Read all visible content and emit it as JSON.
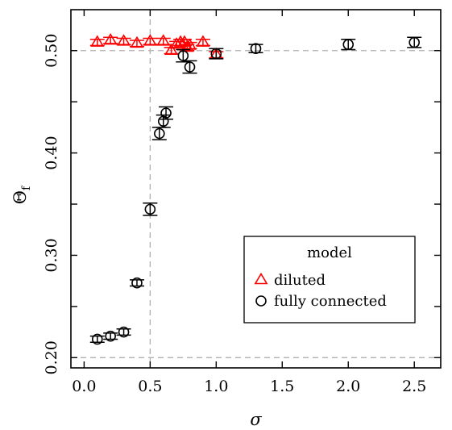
{
  "chart_data": {
    "type": "scatter",
    "xlabel": "σ",
    "ylabel_main": "Θ",
    "ylabel_sub": "f",
    "xlim": [
      -0.1,
      2.7
    ],
    "ylim": [
      0.19,
      0.54
    ],
    "xticks": [
      0.0,
      0.5,
      1.0,
      1.5,
      2.0,
      2.5
    ],
    "xtick_labels": [
      "0.0",
      "0.5",
      "1.0",
      "1.5",
      "2.0",
      "2.5"
    ],
    "yticks": [
      0.2,
      0.3,
      0.4,
      0.5
    ],
    "ytick_labels": [
      "0.20",
      "0.30",
      "0.40",
      "0.50"
    ],
    "minor_yticks": [
      0.25,
      0.35,
      0.45
    ],
    "reference_lines": {
      "x": 0.5,
      "y_low": 0.2,
      "y_high": 0.5,
      "style": "dashed",
      "color": "#b0b0b0"
    },
    "grid": false,
    "legend": {
      "title": "model",
      "position": "bottom-right",
      "entries": [
        {
          "label": "diluted",
          "marker": "triangle",
          "color": "#ff0000"
        },
        {
          "label": "fully connected",
          "marker": "circle",
          "color": "#000000"
        }
      ]
    },
    "series": [
      {
        "name": "diluted",
        "marker": "triangle",
        "color": "#ff0000",
        "points": [
          {
            "x": 0.1,
            "y": 0.508,
            "err": 0.003
          },
          {
            "x": 0.2,
            "y": 0.51,
            "err": 0.003
          },
          {
            "x": 0.3,
            "y": 0.509,
            "err": 0.003
          },
          {
            "x": 0.4,
            "y": 0.507,
            "err": 0.003
          },
          {
            "x": 0.5,
            "y": 0.509,
            "err": 0.003
          },
          {
            "x": 0.6,
            "y": 0.509,
            "err": 0.003
          },
          {
            "x": 0.66,
            "y": 0.5,
            "err": 0.003
          },
          {
            "x": 0.7,
            "y": 0.506,
            "err": 0.003
          },
          {
            "x": 0.73,
            "y": 0.508,
            "err": 0.003
          },
          {
            "x": 0.76,
            "y": 0.508,
            "err": 0.003
          },
          {
            "x": 0.78,
            "y": 0.503,
            "err": 0.003
          },
          {
            "x": 0.8,
            "y": 0.505,
            "err": 0.003
          },
          {
            "x": 0.9,
            "y": 0.508,
            "err": 0.003
          },
          {
            "x": 1.0,
            "y": 0.496,
            "err": 0.003
          }
        ]
      },
      {
        "name": "fully connected",
        "marker": "circle",
        "color": "#000000",
        "points": [
          {
            "x": 0.1,
            "y": 0.218,
            "err": 0.003
          },
          {
            "x": 0.2,
            "y": 0.221,
            "err": 0.003
          },
          {
            "x": 0.3,
            "y": 0.225,
            "err": 0.003
          },
          {
            "x": 0.4,
            "y": 0.273,
            "err": 0.003
          },
          {
            "x": 0.5,
            "y": 0.345,
            "err": 0.006
          },
          {
            "x": 0.57,
            "y": 0.419,
            "err": 0.006
          },
          {
            "x": 0.6,
            "y": 0.431,
            "err": 0.006
          },
          {
            "x": 0.62,
            "y": 0.439,
            "err": 0.006
          },
          {
            "x": 0.75,
            "y": 0.495,
            "err": 0.006
          },
          {
            "x": 0.8,
            "y": 0.484,
            "err": 0.006
          },
          {
            "x": 1.0,
            "y": 0.497,
            "err": 0.005
          },
          {
            "x": 1.3,
            "y": 0.502,
            "err": 0.004
          },
          {
            "x": 2.0,
            "y": 0.506,
            "err": 0.005
          },
          {
            "x": 2.5,
            "y": 0.508,
            "err": 0.005
          }
        ]
      }
    ]
  }
}
